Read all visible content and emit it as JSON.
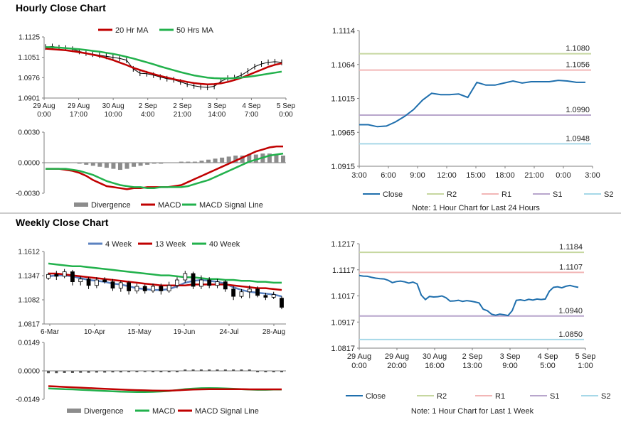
{
  "titles": {
    "hourly": "Hourly Close Chart",
    "weekly": "Weekly Close Chart"
  },
  "colors": {
    "close": "#1f6fad",
    "ma_short": "#c00000",
    "ma_long": "#22b14c",
    "r2": "#c6d7a0",
    "r1": "#f2b6b6",
    "s1": "#b8a6cc",
    "s2": "#a6d8e8",
    "avg4": "#5b82c0",
    "divergence": "#8c8c8c"
  },
  "chart_data": [
    {
      "id": "hourly-price",
      "type": "line",
      "legend": [
        {
          "name": "20 Hr MA",
          "color": "#c00000"
        },
        {
          "name": "50 Hrs MA",
          "color": "#22b14c"
        }
      ],
      "ylim": [
        1.0901,
        1.1125
      ],
      "yticks": [
        "1.1125",
        "1.1051",
        "1.0976",
        "1.0901"
      ],
      "xticks": [
        [
          "29 Aug",
          "0:00"
        ],
        [
          "29 Aug",
          "17:00"
        ],
        [
          "30 Aug",
          "10:00"
        ],
        [
          "2 Sep",
          "4:00"
        ],
        [
          "2 Sep",
          "21:00"
        ],
        [
          "3 Sep",
          "14:00"
        ],
        [
          "4 Sep",
          "7:00"
        ],
        [
          "5 Sep",
          "0:00"
        ]
      ],
      "close": [
        1.1088,
        1.109,
        1.1086,
        1.1084,
        1.108,
        1.1072,
        1.1066,
        1.1062,
        1.1058,
        1.1054,
        1.105,
        1.1046,
        1.104,
        1.1008,
        1.0992,
        1.099,
        1.0985,
        1.0978,
        1.0972,
        1.0968,
        1.096,
        1.0952,
        1.0946,
        1.0942,
        1.094,
        1.0944,
        1.0962,
        1.0974,
        1.0976,
        1.0984,
        1.1,
        1.1016,
        1.1026,
        1.1032,
        1.1034,
        1.1032
      ],
      "series": [
        {
          "name": "20 Hr MA",
          "color": "#c00000",
          "values": [
            1.1082,
            1.108,
            1.1078,
            1.1076,
            1.1073,
            1.1069,
            1.1065,
            1.106,
            1.1055,
            1.1048,
            1.104,
            1.1031,
            1.1022,
            1.1012,
            1.1004,
            1.0996,
            1.0989,
            1.0982,
            1.0976,
            1.097,
            1.0965,
            1.096,
            1.0956,
            1.0953,
            1.0951,
            1.0952,
            1.0955,
            1.096,
            1.0967,
            1.0975,
            1.0985,
            1.0995,
            1.1005,
            1.1015,
            1.1023,
            1.1028
          ]
        },
        {
          "name": "50 Hrs MA",
          "color": "#22b14c",
          "values": [
            1.1088,
            1.1087,
            1.1086,
            1.1084,
            1.1082,
            1.108,
            1.1077,
            1.1074,
            1.1071,
            1.1067,
            1.1063,
            1.1058,
            1.1052,
            1.1046,
            1.1039,
            1.1032,
            1.1025,
            1.1017,
            1.101,
            1.1003,
            1.0996,
            1.099,
            1.0984,
            1.098,
            1.0976,
            1.0974,
            1.0973,
            1.0973,
            1.0974,
            1.0976,
            1.0979,
            1.0982,
            1.0986,
            1.099,
            1.0994,
            1.0998
          ]
        }
      ]
    },
    {
      "id": "hourly-macd",
      "type": "line",
      "legend": [
        {
          "name": "Divergence",
          "color": "#8c8c8c"
        },
        {
          "name": "MACD",
          "color": "#c00000"
        },
        {
          "name": "MACD Signal Line",
          "color": "#22b14c"
        }
      ],
      "ylim": [
        -0.003,
        0.003
      ],
      "yticks": [
        "0.0030",
        "0.0000",
        "-0.0030"
      ],
      "divergence": [
        0,
        0,
        0,
        0,
        0,
        -0.0001,
        -0.0002,
        -0.0003,
        -0.0004,
        -0.0005,
        -0.0006,
        -0.0007,
        -0.0006,
        -0.0004,
        -0.0003,
        -0.0002,
        -0.0001,
        -0.0001,
        0,
        0,
        0.0001,
        0.0001,
        0.0001,
        0.0002,
        0.0003,
        0.0004,
        0.0005,
        0.0006,
        0.0007,
        0.0007,
        0.0008,
        0.0008,
        0.0009,
        0.0009,
        0.0008,
        0.0007
      ],
      "series": [
        {
          "name": "MACD",
          "color": "#c00000",
          "values": [
            -0.0006,
            -0.0006,
            -0.0006,
            -0.0007,
            -0.0008,
            -0.001,
            -0.0013,
            -0.0017,
            -0.002,
            -0.0023,
            -0.0024,
            -0.0025,
            -0.0026,
            -0.0025,
            -0.0025,
            -0.0024,
            -0.0024,
            -0.0024,
            -0.0024,
            -0.0023,
            -0.0022,
            -0.0019,
            -0.0016,
            -0.0013,
            -0.001,
            -0.0007,
            -0.0004,
            -0.0001,
            0.0002,
            0.0005,
            0.0008,
            0.0011,
            0.0013,
            0.0015,
            0.0016,
            0.0016
          ]
        },
        {
          "name": "MACD Signal Line",
          "color": "#22b14c",
          "values": [
            -0.0006,
            -0.0006,
            -0.0006,
            -0.0006,
            -0.0007,
            -0.0008,
            -0.001,
            -0.0012,
            -0.0015,
            -0.0018,
            -0.002,
            -0.0022,
            -0.0023,
            -0.0024,
            -0.0024,
            -0.0025,
            -0.0025,
            -0.0024,
            -0.0024,
            -0.0024,
            -0.0024,
            -0.0023,
            -0.0021,
            -0.0019,
            -0.0017,
            -0.0014,
            -0.0011,
            -0.0008,
            -0.0005,
            -0.0002,
            0.0001,
            0.0003,
            0.0005,
            0.0007,
            0.0008,
            0.0009
          ]
        }
      ]
    },
    {
      "id": "hourly-levels",
      "type": "line",
      "ylim": [
        1.0915,
        1.1114
      ],
      "yticks": [
        "1.1114",
        "1.1064",
        "1.1015",
        "1.0965",
        "1.0915"
      ],
      "xticks": [
        "3:00",
        "6:00",
        "9:00",
        "12:00",
        "15:00",
        "18:00",
        "21:00",
        "0:00",
        "3:00"
      ],
      "levels": [
        {
          "name": "R2",
          "value": 1.108,
          "label": "1.1080",
          "color": "#c6d7a0"
        },
        {
          "name": "R1",
          "value": 1.1056,
          "label": "1.1056",
          "color": "#f2b6b6"
        },
        {
          "name": "S1",
          "value": 1.099,
          "label": "1.0990",
          "color": "#b8a6cc"
        },
        {
          "name": "S2",
          "value": 1.0948,
          "label": "1.0948",
          "color": "#a6d8e8"
        }
      ],
      "close": [
        1.0976,
        1.0976,
        1.0973,
        1.0974,
        1.098,
        1.0988,
        1.0998,
        1.1012,
        1.1022,
        1.102,
        1.102,
        1.1021,
        1.1016,
        1.1038,
        1.1034,
        1.1034,
        1.1037,
        1.104,
        1.1037,
        1.1039,
        1.1039,
        1.1039,
        1.1041,
        1.104,
        1.1038,
        1.1038
      ],
      "legend": [
        "Close",
        "R2",
        "R1",
        "S1",
        "S2"
      ],
      "note": "Note: 1 Hour Chart for Last 24 Hours"
    },
    {
      "id": "weekly-price",
      "type": "line",
      "legend": [
        {
          "name": "4 Week",
          "color": "#5b82c0"
        },
        {
          "name": "13 Week",
          "color": "#c00000"
        },
        {
          "name": "40 Week",
          "color": "#22b14c"
        }
      ],
      "ylim": [
        1.0817,
        1.1612
      ],
      "yticks": [
        "1.1612",
        "1.1347",
        "1.1082",
        "1.0817"
      ],
      "xticks": [
        "6-Mar",
        "10-Apr",
        "15-May",
        "19-Jun",
        "24-Jul",
        "28-Aug"
      ],
      "candles": [
        [
          1.132,
          1.136,
          1.138,
          1.13
        ],
        [
          1.136,
          1.134,
          1.14,
          1.13
        ],
        [
          1.134,
          1.139,
          1.142,
          1.132
        ],
        [
          1.139,
          1.128,
          1.141,
          1.124
        ],
        [
          1.128,
          1.131,
          1.134,
          1.124
        ],
        [
          1.131,
          1.124,
          1.133,
          1.12
        ],
        [
          1.124,
          1.13,
          1.133,
          1.121
        ],
        [
          1.13,
          1.128,
          1.133,
          1.126
        ],
        [
          1.128,
          1.121,
          1.131,
          1.118
        ],
        [
          1.121,
          1.127,
          1.129,
          1.117
        ],
        [
          1.127,
          1.118,
          1.129,
          1.114
        ],
        [
          1.118,
          1.123,
          1.126,
          1.115
        ],
        [
          1.123,
          1.118,
          1.125,
          1.115
        ],
        [
          1.118,
          1.123,
          1.126,
          1.116
        ],
        [
          1.123,
          1.118,
          1.126,
          1.114
        ],
        [
          1.118,
          1.124,
          1.128,
          1.116
        ],
        [
          1.124,
          1.13,
          1.133,
          1.121
        ],
        [
          1.13,
          1.137,
          1.14,
          1.127
        ],
        [
          1.137,
          1.123,
          1.139,
          1.12
        ],
        [
          1.123,
          1.13,
          1.135,
          1.12
        ],
        [
          1.13,
          1.124,
          1.133,
          1.121
        ],
        [
          1.124,
          1.128,
          1.131,
          1.121
        ],
        [
          1.128,
          1.12,
          1.13,
          1.117
        ],
        [
          1.12,
          1.112,
          1.123,
          1.108
        ],
        [
          1.112,
          1.117,
          1.12,
          1.11
        ],
        [
          1.117,
          1.12,
          1.124,
          1.11
        ],
        [
          1.12,
          1.113,
          1.123,
          1.111
        ],
        [
          1.113,
          1.111,
          1.116,
          1.108
        ],
        [
          1.111,
          1.114,
          1.117,
          1.109
        ],
        [
          1.11,
          1.1,
          1.112,
          1.098
        ]
      ],
      "series": [
        {
          "name": "4 Week",
          "color": "#5b82c0",
          "values": [
            1.134,
            1.135,
            1.135,
            1.134,
            1.132,
            1.13,
            1.129,
            1.128,
            1.126,
            1.125,
            1.123,
            1.121,
            1.12,
            1.119,
            1.119,
            1.12,
            1.123,
            1.127,
            1.129,
            1.13,
            1.129,
            1.128,
            1.126,
            1.122,
            1.119,
            1.117,
            1.116,
            1.115,
            1.114,
            1.112
          ]
        },
        {
          "name": "13 Week",
          "color": "#c00000",
          "values": [
            1.137,
            1.137,
            1.136,
            1.135,
            1.134,
            1.133,
            1.132,
            1.131,
            1.13,
            1.129,
            1.128,
            1.127,
            1.126,
            1.125,
            1.124,
            1.124,
            1.124,
            1.124,
            1.125,
            1.125,
            1.125,
            1.125,
            1.125,
            1.124,
            1.123,
            1.122,
            1.121,
            1.121,
            1.12,
            1.119
          ]
        },
        {
          "name": "40 Week",
          "color": "#22b14c",
          "values": [
            1.148,
            1.147,
            1.146,
            1.145,
            1.145,
            1.144,
            1.143,
            1.142,
            1.141,
            1.14,
            1.139,
            1.138,
            1.137,
            1.136,
            1.135,
            1.135,
            1.134,
            1.133,
            1.133,
            1.132,
            1.131,
            1.131,
            1.13,
            1.13,
            1.129,
            1.129,
            1.128,
            1.128,
            1.127,
            1.127
          ]
        }
      ]
    },
    {
      "id": "weekly-macd",
      "type": "line",
      "legend": [
        {
          "name": "Divergence",
          "color": "#8c8c8c"
        },
        {
          "name": "MACD",
          "color": "#22b14c"
        },
        {
          "name": "MACD Signal Line",
          "color": "#c00000"
        }
      ],
      "ylim": [
        -0.0149,
        0.0149
      ],
      "yticks": [
        "0.0149",
        "0.0000",
        "-0.0149"
      ],
      "divergence": [
        -0.0012,
        -0.0012,
        -0.0011,
        -0.0011,
        -0.001,
        -0.001,
        -0.0009,
        -0.0009,
        -0.0008,
        -0.0008,
        -0.0007,
        -0.0007,
        -0.0006,
        -0.0005,
        -0.0004,
        -0.0003,
        -0.0002,
        0.0001,
        0.0003,
        0.0004,
        0.0005,
        0.0004,
        0.0003,
        0.0002,
        0.0001,
        0,
        -0.0001,
        -0.0001,
        -0.0001,
        -0.0002
      ],
      "series": [
        {
          "name": "MACD",
          "color": "#22b14c",
          "values": [
            -0.0092,
            -0.0094,
            -0.0096,
            -0.0097,
            -0.0099,
            -0.0101,
            -0.0103,
            -0.0105,
            -0.0107,
            -0.0109,
            -0.011,
            -0.0111,
            -0.0111,
            -0.011,
            -0.0108,
            -0.0105,
            -0.0101,
            -0.0096,
            -0.0093,
            -0.0091,
            -0.009,
            -0.0091,
            -0.0092,
            -0.0094,
            -0.0096,
            -0.0098,
            -0.0099,
            -0.0099,
            -0.0098,
            -0.0098
          ]
        },
        {
          "name": "MACD Signal Line",
          "color": "#c00000",
          "values": [
            -0.008,
            -0.0082,
            -0.0084,
            -0.0086,
            -0.0088,
            -0.009,
            -0.0092,
            -0.0094,
            -0.0096,
            -0.0098,
            -0.01,
            -0.0101,
            -0.0102,
            -0.0103,
            -0.0104,
            -0.0104,
            -0.0102,
            -0.01,
            -0.0098,
            -0.0097,
            -0.0096,
            -0.0096,
            -0.0096,
            -0.0096,
            -0.0096,
            -0.0097,
            -0.0097,
            -0.0097,
            -0.0097,
            -0.0097
          ]
        }
      ]
    },
    {
      "id": "weekly-levels",
      "type": "line",
      "ylim": [
        1.0817,
        1.1217
      ],
      "yticks": [
        "1.1217",
        "1.1117",
        "1.1017",
        "1.0917",
        "1.0817"
      ],
      "xticks": [
        [
          "29 Aug",
          "0:00"
        ],
        [
          "29 Aug",
          "20:00"
        ],
        [
          "30 Aug",
          "16:00"
        ],
        [
          "2 Sep",
          "13:00"
        ],
        [
          "3 Sep",
          "9:00"
        ],
        [
          "4 Sep",
          "5:00"
        ],
        [
          "5 Sep",
          "1:00"
        ]
      ],
      "levels": [
        {
          "name": "R2",
          "value": 1.1184,
          "label": "1.1184",
          "color": "#c6d7a0"
        },
        {
          "name": "R1",
          "value": 1.1107,
          "label": "1.1107",
          "color": "#f2b6b6"
        },
        {
          "name": "S1",
          "value": 1.094,
          "label": "1.0940",
          "color": "#b8a6cc"
        },
        {
          "name": "S2",
          "value": 1.085,
          "label": "1.0850",
          "color": "#a6d8e8"
        }
      ],
      "close": [
        1.1095,
        1.1093,
        1.1092,
        1.1088,
        1.1085,
        1.1083,
        1.1082,
        1.1077,
        1.1068,
        1.1072,
        1.1074,
        1.1071,
        1.1066,
        1.107,
        1.1063,
        1.102,
        1.1003,
        1.1015,
        1.1013,
        1.1014,
        1.1017,
        1.101,
        1.0997,
        1.0998,
        1.1,
        1.0996,
        1.0999,
        1.0997,
        1.0994,
        1.099,
        1.0966,
        1.096,
        1.0947,
        1.0943,
        1.0947,
        1.0945,
        1.0942,
        1.096,
        1.1,
        1.1002,
        1.0999,
        1.1004,
        1.1001,
        1.1005,
        1.1003,
        1.1005,
        1.1035,
        1.105,
        1.1052,
        1.1048,
        1.1054,
        1.1057,
        1.1053,
        1.105
      ],
      "legend": [
        "Close",
        "R2",
        "R1",
        "S1",
        "S2"
      ],
      "note": "Note: 1 Hour Chart for Last 1 Week"
    }
  ]
}
